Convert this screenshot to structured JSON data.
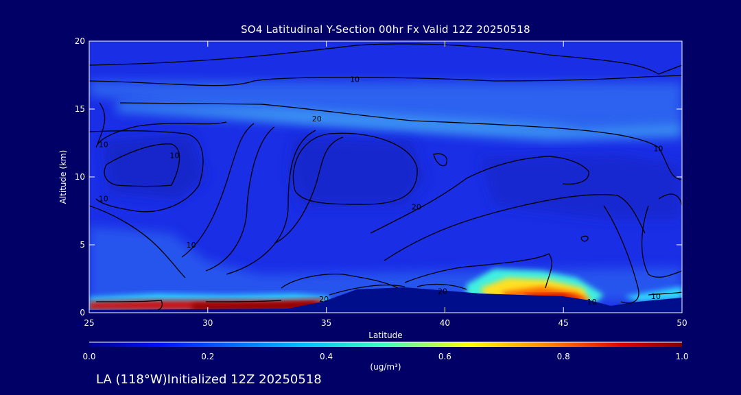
{
  "chart_data": {
    "type": "heatmap",
    "title": "SO4 Latitudinal Y-Section 00hr  Fx Valid 12Z 20250518",
    "xlabel": "Latitude",
    "ylabel": "Altitude (km)",
    "xlim": [
      25,
      50
    ],
    "ylim": [
      0,
      20
    ],
    "x_ticks": [
      25,
      30,
      35,
      40,
      45,
      50
    ],
    "y_ticks": [
      0,
      5,
      10,
      15,
      20
    ],
    "colorbar": {
      "min": 0.0,
      "max": 1.0,
      "ticks": [
        "0.0",
        "0.2",
        "0.4",
        "0.6",
        "0.8",
        "1.0"
      ],
      "units": "(ug/m³)"
    },
    "colors": {
      "background": "#000066",
      "field_base": "#1a2ee6",
      "terrain": "#000e8c",
      "contour": "#000000"
    },
    "contours": [
      {
        "label": "10",
        "lat": 36.2,
        "alt": 17.2
      },
      {
        "label": "20",
        "lat": 34.6,
        "alt": 14.3
      },
      {
        "label": "20",
        "lat": 38.8,
        "alt": 7.8
      },
      {
        "label": "10",
        "lat": 25.6,
        "alt": 12.4
      },
      {
        "label": "10",
        "lat": 28.6,
        "alt": 11.6
      },
      {
        "label": "10",
        "lat": 25.6,
        "alt": 8.4
      },
      {
        "label": "10",
        "lat": 29.3,
        "alt": 5.0
      },
      {
        "label": "10",
        "lat": 49.0,
        "alt": 12.1
      },
      {
        "label": "10",
        "lat": 48.9,
        "alt": 1.2
      },
      {
        "label": "10",
        "lat": 46.2,
        "alt": 0.8
      },
      {
        "label": "20",
        "lat": 34.9,
        "alt": 1.0
      },
      {
        "label": "20",
        "lat": 39.9,
        "alt": 1.6
      }
    ],
    "footer": "LA (118°W)Initialized 12Z 20250518"
  }
}
